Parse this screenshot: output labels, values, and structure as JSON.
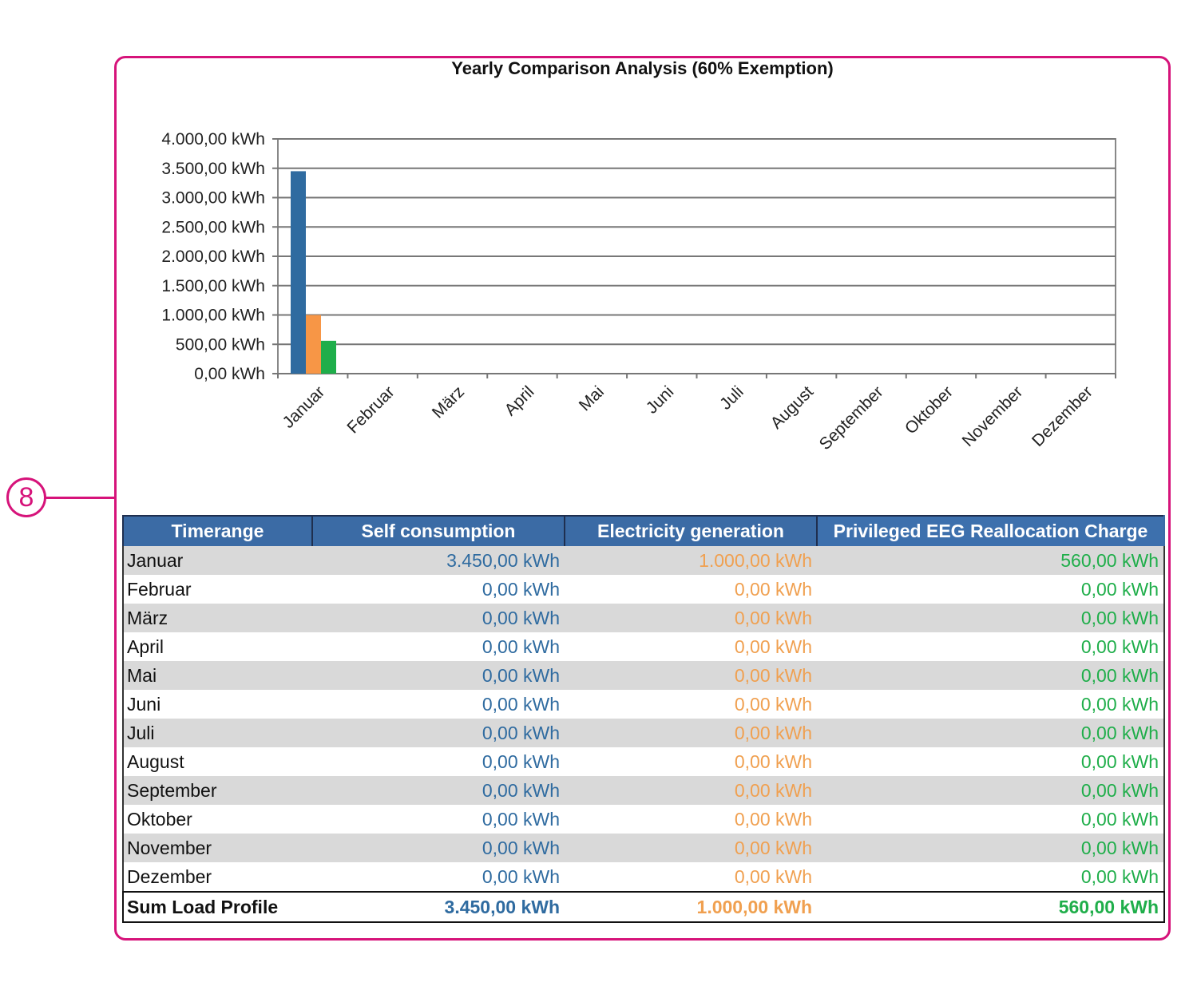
{
  "callout": {
    "number": "8"
  },
  "colors": {
    "frame": "#d6137a",
    "self_consumption": "#2f6ba0",
    "electricity_generation": "#f79646",
    "eeg": "#1fae4a",
    "table_header": "#3b6ba5"
  },
  "chart_data": {
    "type": "bar",
    "title": "Yearly Comparison Analysis (60% Exemption)",
    "categories": [
      "Januar",
      "Februar",
      "März",
      "April",
      "Mai",
      "Juni",
      "Juli",
      "August",
      "September",
      "Oktober",
      "November",
      "Dezember"
    ],
    "series": [
      {
        "name": "Self consumption",
        "color": "#2f6ba0",
        "values": [
          3450,
          0,
          0,
          0,
          0,
          0,
          0,
          0,
          0,
          0,
          0,
          0
        ]
      },
      {
        "name": "Electricity generation",
        "color": "#f79646",
        "values": [
          1000,
          0,
          0,
          0,
          0,
          0,
          0,
          0,
          0,
          0,
          0,
          0
        ]
      },
      {
        "name": "Privileged EEG Reallocation Charge",
        "color": "#1fae4a",
        "values": [
          560,
          0,
          0,
          0,
          0,
          0,
          0,
          0,
          0,
          0,
          0,
          0
        ]
      }
    ],
    "ylim": [
      0,
      4000
    ],
    "yticks": [
      {
        "value": 0,
        "label": "0,00 kWh"
      },
      {
        "value": 500,
        "label": "500,00 kWh"
      },
      {
        "value": 1000,
        "label": "1.000,00 kWh"
      },
      {
        "value": 1500,
        "label": "1.500,00 kWh"
      },
      {
        "value": 2000,
        "label": "2.000,00 kWh"
      },
      {
        "value": 2500,
        "label": "2.500,00 kWh"
      },
      {
        "value": 3000,
        "label": "3.000,00 kWh"
      },
      {
        "value": 3500,
        "label": "3.500,00 kWh"
      },
      {
        "value": 4000,
        "label": "4.000,00 kWh"
      }
    ],
    "grid": true,
    "legend": "none"
  },
  "table": {
    "headers": [
      "Timerange",
      "Self consumption",
      "Electricity generation",
      "Privileged EEG Reallocation Charge"
    ],
    "rows": [
      [
        "Januar",
        "3.450,00 kWh",
        "1.000,00 kWh",
        "560,00 kWh"
      ],
      [
        "Februar",
        "0,00 kWh",
        "0,00 kWh",
        "0,00 kWh"
      ],
      [
        "März",
        "0,00 kWh",
        "0,00 kWh",
        "0,00 kWh"
      ],
      [
        "April",
        "0,00 kWh",
        "0,00 kWh",
        "0,00 kWh"
      ],
      [
        "Mai",
        "0,00 kWh",
        "0,00 kWh",
        "0,00 kWh"
      ],
      [
        "Juni",
        "0,00 kWh",
        "0,00 kWh",
        "0,00 kWh"
      ],
      [
        "Juli",
        "0,00 kWh",
        "0,00 kWh",
        "0,00 kWh"
      ],
      [
        "August",
        "0,00 kWh",
        "0,00 kWh",
        "0,00 kWh"
      ],
      [
        "September",
        "0,00 kWh",
        "0,00 kWh",
        "0,00 kWh"
      ],
      [
        "Oktober",
        "0,00 kWh",
        "0,00 kWh",
        "0,00 kWh"
      ],
      [
        "November",
        "0,00 kWh",
        "0,00 kWh",
        "0,00 kWh"
      ],
      [
        "Dezember",
        "0,00 kWh",
        "0,00 kWh",
        "0,00 kWh"
      ]
    ],
    "sum": [
      "Sum Load Profile",
      "3.450,00 kWh",
      "1.000,00 kWh",
      "560,00 kWh"
    ]
  }
}
